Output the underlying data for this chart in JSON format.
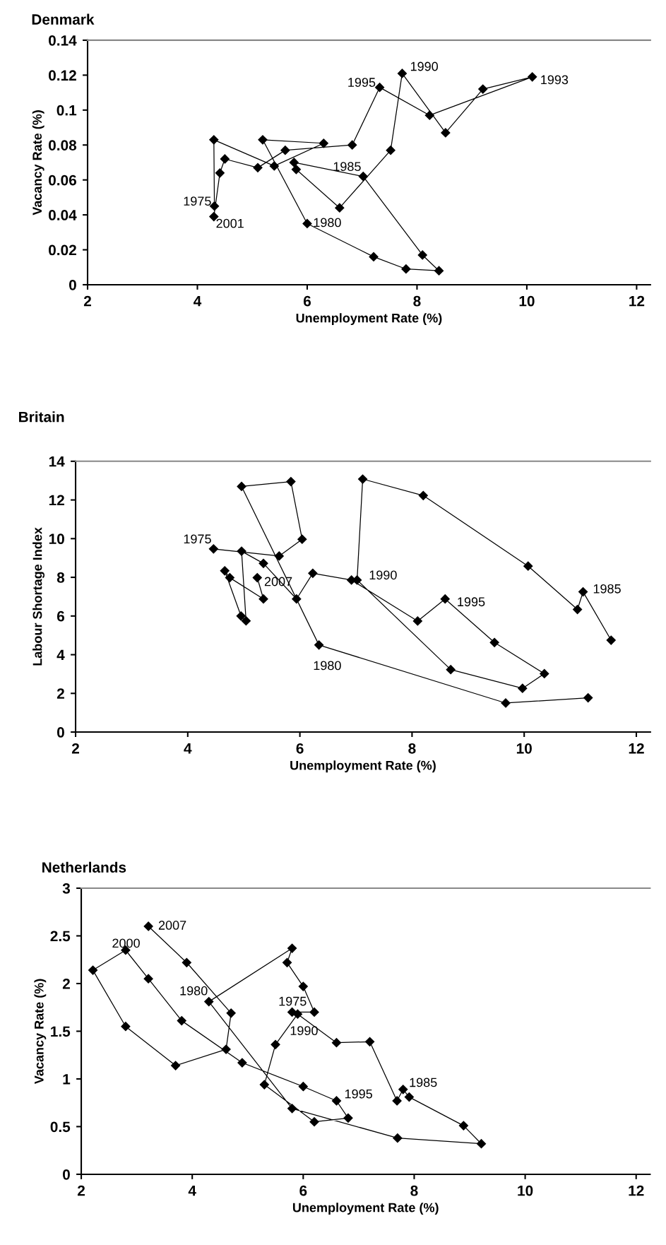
{
  "chart_data": [
    {
      "type": "line",
      "title": "Denmark",
      "xlabel": "Unemployment Rate (%)",
      "ylabel": "Vacancy Rate (%)",
      "marker": "diamond",
      "line_style": "solid",
      "grid": false,
      "xlim": [
        2,
        12.25
      ],
      "xticks": [
        2,
        4,
        6,
        8,
        10,
        12
      ],
      "ylim": [
        0,
        0.14
      ],
      "yticks": [
        0,
        0.02,
        0.04,
        0.06,
        0.08,
        0.1,
        0.12,
        0.14
      ],
      "series": [
        {
          "color": "#000000",
          "x": [
            4.31,
            4.3,
            5.4,
            6.3,
            5.19,
            6.0,
            7.21,
            7.8,
            8.4,
            8.1,
            7.02,
            5.76,
            5.8,
            6.59,
            7.52,
            7.73,
            8.52,
            9.2,
            10.1,
            8.23,
            7.32,
            6.82,
            5.6,
            5.1,
            4.5,
            4.41,
            4.3
          ],
          "values": [
            0.045,
            0.083,
            0.068,
            0.081,
            0.083,
            0.035,
            0.016,
            0.009,
            0.008,
            0.017,
            0.062,
            0.07,
            0.066,
            0.044,
            0.077,
            0.121,
            0.087,
            0.112,
            0.119,
            0.097,
            0.113,
            0.08,
            0.077,
            0.067,
            0.072,
            0.064,
            0.039
          ]
        }
      ],
      "annotations": [
        {
          "text": "1975",
          "x": 4.31,
          "y": 0.045
        },
        {
          "text": "2001",
          "x": 4.3,
          "y": 0.039
        },
        {
          "text": "1980",
          "x": 6.0,
          "y": 0.035
        },
        {
          "text": "1985",
          "x": 7.02,
          "y": 0.062
        },
        {
          "text": "1990",
          "x": 7.73,
          "y": 0.121
        },
        {
          "text": "1993",
          "x": 10.1,
          "y": 0.119
        },
        {
          "text": "1995",
          "x": 7.32,
          "y": 0.113
        }
      ]
    },
    {
      "type": "line",
      "title": "Britain",
      "xlabel": "Unemployment Rate (%)",
      "ylabel": "Labour Shortage Index",
      "marker": "diamond",
      "line_style": "solid",
      "grid": false,
      "xlim": [
        2,
        12.25
      ],
      "xticks": [
        2,
        4,
        6,
        8,
        10,
        12
      ],
      "ylim": [
        0,
        14
      ],
      "yticks": [
        0,
        2,
        4,
        6,
        8,
        10,
        12,
        14
      ],
      "series": [
        {
          "color": "#000000",
          "x": [
            4.46,
            5.63,
            6.04,
            5.84,
            4.96,
            6.34,
            9.67,
            11.14,
            null,
            11.55,
            11.05,
            10.95,
            10.07,
            8.2,
            7.12,
            7.02,
            8.69,
            9.97,
            10.36,
            9.47,
            8.59,
            8.1,
            6.92,
            6.23,
            5.94,
            5.35,
            4.96,
            5.04,
            4.95,
            4.66,
            4.75,
            5.35,
            5.24
          ],
          "values": [
            9.47,
            9.1,
            9.97,
            12.95,
            12.7,
            4.5,
            1.5,
            1.77,
            null,
            4.75,
            7.25,
            6.34,
            8.58,
            12.23,
            13.08,
            7.86,
            3.23,
            2.26,
            3.02,
            4.63,
            6.88,
            5.74,
            7.86,
            8.21,
            6.88,
            8.72,
            9.35,
            5.75,
            6.0,
            8.34,
            7.98,
            6.88,
            7.98
          ]
        }
      ],
      "annotations": [
        {
          "text": "1975",
          "x": 4.46,
          "y": 9.47
        },
        {
          "text": "2007",
          "x": 5.24,
          "y": 7.98
        },
        {
          "text": "1980",
          "x": 6.34,
          "y": 4.5
        },
        {
          "text": "1990",
          "x": 7.02,
          "y": 7.86
        },
        {
          "text": "1995",
          "x": 8.59,
          "y": 6.88
        },
        {
          "text": "1985",
          "x": 11.05,
          "y": 7.25
        }
      ]
    },
    {
      "type": "line",
      "title": "Netherlands",
      "xlabel": "Unemployment Rate (%)",
      "ylabel": "Vacancy Rate (%)",
      "marker": "diamond",
      "line_style": "solid",
      "grid": false,
      "xlim": [
        2,
        12.25
      ],
      "xticks": [
        2,
        4,
        6,
        8,
        10,
        12
      ],
      "ylim": [
        0,
        3
      ],
      "yticks": [
        0,
        0.5,
        1,
        1.5,
        2,
        2.5,
        3
      ],
      "series": [
        {
          "color": "#000000",
          "x": [
            5.8,
            6.2,
            6.0,
            5.71,
            5.8,
            4.3,
            5.8,
            7.7,
            9.21,
            8.89,
            7.91,
            7.8,
            7.69,
            7.2,
            6.6,
            5.9,
            5.5,
            5.3,
            6.2,
            6.81,
            6.6,
            6.0,
            4.9,
            3.81,
            3.21,
            2.8,
            2.21,
            2.8,
            3.7,
            4.61,
            4.7,
            3.9,
            3.21
          ],
          "values": [
            1.7,
            1.7,
            1.97,
            2.22,
            2.37,
            1.81,
            0.69,
            0.38,
            0.32,
            0.51,
            0.81,
            0.89,
            0.77,
            1.39,
            1.38,
            1.68,
            1.36,
            0.94,
            0.55,
            0.59,
            0.77,
            0.92,
            1.17,
            1.61,
            2.05,
            2.35,
            2.14,
            1.55,
            1.14,
            1.31,
            1.69,
            2.22,
            2.6
          ]
        }
      ],
      "annotations": [
        {
          "text": "2007",
          "x": 3.21,
          "y": 2.6
        },
        {
          "text": "2000",
          "x": 2.8,
          "y": 2.35
        },
        {
          "text": "1980",
          "x": 4.3,
          "y": 1.81
        },
        {
          "text": "1975",
          "x": 5.8,
          "y": 1.7
        },
        {
          "text": "1990",
          "x": 5.9,
          "y": 1.68
        },
        {
          "text": "1995",
          "x": 6.6,
          "y": 0.77
        },
        {
          "text": "1985",
          "x": 7.8,
          "y": 0.89
        }
      ]
    }
  ]
}
